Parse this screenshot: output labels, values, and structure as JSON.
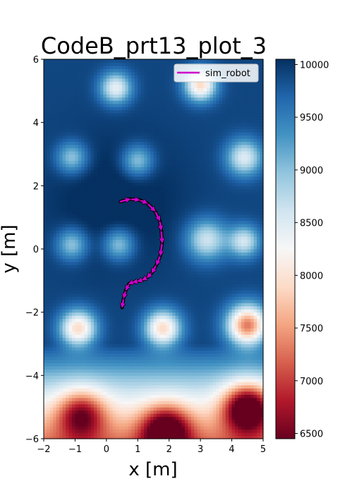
{
  "chart_data": {
    "type": "heatmap",
    "title": "CodeB_prt13_plot_3",
    "xlabel": "x [m]",
    "ylabel": "y [m]",
    "xlim": [
      -2,
      5
    ],
    "ylim": [
      -6,
      6
    ],
    "xticks": [
      -2,
      -1,
      0,
      1,
      2,
      3,
      4,
      5
    ],
    "xtick_labels": [
      "−2",
      "−1",
      "0",
      "1",
      "2",
      "3",
      "4",
      "5"
    ],
    "yticks": [
      -6,
      -4,
      -2,
      0,
      2,
      4,
      6
    ],
    "ytick_labels": [
      "−6",
      "−4",
      "−2",
      "0",
      "2",
      "4",
      "6"
    ],
    "colormap": "RdBu",
    "colorbar": {
      "range": [
        6450,
        10050
      ],
      "ticks": [
        6500,
        7000,
        7500,
        8000,
        8500,
        9000,
        9500,
        10000
      ],
      "tick_labels": [
        "6500",
        "7000",
        "7500",
        "8000",
        "8500",
        "9000",
        "9500",
        "10000"
      ]
    },
    "field": {
      "base": 9900,
      "blobs": [
        {
          "x": 0.3,
          "y": 5.1,
          "amp": -1500,
          "s": 0.35
        },
        {
          "x": 3.0,
          "y": 5.2,
          "amp": -2000,
          "s": 0.35
        },
        {
          "x": -1.1,
          "y": 2.9,
          "amp": -1000,
          "s": 0.35
        },
        {
          "x": 1.0,
          "y": 2.8,
          "amp": -1000,
          "s": 0.35
        },
        {
          "x": 4.4,
          "y": 2.9,
          "amp": -1400,
          "s": 0.4
        },
        {
          "x": -1.1,
          "y": 0.15,
          "amp": -1000,
          "s": 0.35
        },
        {
          "x": 0.4,
          "y": 0.15,
          "amp": -1000,
          "s": 0.35
        },
        {
          "x": 3.2,
          "y": 0.3,
          "amp": -1300,
          "s": 0.45
        },
        {
          "x": 4.4,
          "y": 0.25,
          "amp": -1300,
          "s": 0.35
        },
        {
          "x": -0.9,
          "y": -2.5,
          "amp": -2000,
          "s": 0.4
        },
        {
          "x": 1.8,
          "y": -2.5,
          "amp": -2000,
          "s": 0.4
        },
        {
          "x": 4.5,
          "y": -2.4,
          "amp": -2600,
          "s": 0.45
        },
        {
          "x": -0.8,
          "y": -5.2,
          "amp": -1600,
          "s": 0.55
        },
        {
          "x": 1.9,
          "y": -5.7,
          "amp": -1900,
          "s": 0.55
        },
        {
          "x": 4.5,
          "y": -5.0,
          "amp": -2400,
          "s": 0.55
        }
      ],
      "gradient": {
        "y_start": -3.0,
        "rate": 850
      },
      "dark_center": {
        "x": 0.3,
        "y": 1.5,
        "amp": 250,
        "s": 1.5
      }
    },
    "series": [
      {
        "name": "sim_robot",
        "color": "#cc00cc",
        "x": [
          0.45,
          0.75,
          1.05,
          1.3,
          1.55,
          1.7,
          1.75,
          1.78,
          1.72,
          1.6,
          1.45,
          1.3,
          1.15,
          1.0,
          0.85,
          0.72,
          0.62,
          0.55,
          0.5
        ],
        "y": [
          1.5,
          1.58,
          1.55,
          1.45,
          1.2,
          0.9,
          0.6,
          0.2,
          -0.2,
          -0.5,
          -0.75,
          -0.9,
          -0.98,
          -1.02,
          -1.05,
          -1.1,
          -1.3,
          -1.55,
          -1.85
        ]
      }
    ],
    "legend": {
      "position": "top-right",
      "entries": [
        "sim_robot"
      ]
    }
  }
}
